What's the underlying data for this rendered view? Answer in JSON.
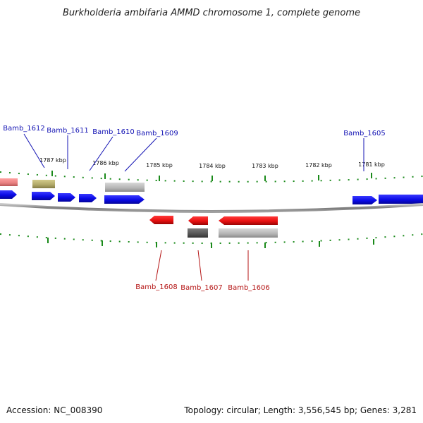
{
  "title": "Burkholderia ambifaria AMMD chromosome 1, complete genome",
  "footer": {
    "accession": "Accession: NC_008390",
    "summary": "Topology: circular; Length: 3,556,545 bp; Genes: 3,281"
  },
  "kbp_labels": [
    "1787 kbp",
    "1786 kbp",
    "1785 kbp",
    "1784 kbp",
    "1783 kbp",
    "1782 kbp",
    "1781 kbp"
  ],
  "forward_genes": [
    "Bamb_1612",
    "Bamb_1611",
    "Bamb_1610",
    "Bamb_1609",
    "Bamb_1605"
  ],
  "reverse_genes": [
    "Bamb_1608",
    "Bamb_1607",
    "Bamb_1606"
  ],
  "colors": {
    "forward_cds": "#1010e0",
    "reverse_cds": "#e81010",
    "pseudo_grey": "#b8b8b8",
    "dark_grey": "#5a5a5a",
    "olive": "#b8b070",
    "pink": "#e88080",
    "tick": "#1a8a1a",
    "backbone": "#808080"
  }
}
